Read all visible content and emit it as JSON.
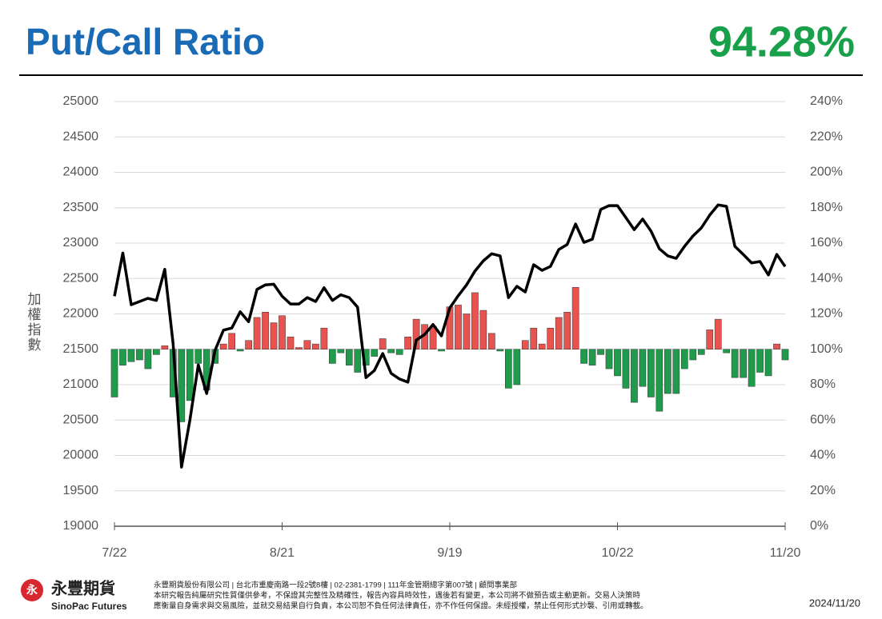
{
  "header": {
    "title": "Put/Call Ratio",
    "value": "94.28%"
  },
  "chart_data": {
    "type": "combo",
    "y_label": "加權指數",
    "categories": [
      "7/22",
      null,
      null,
      null,
      null,
      null,
      null,
      null,
      null,
      null,
      null,
      null,
      null,
      null,
      null,
      null,
      null,
      null,
      null,
      null,
      "8/21",
      null,
      null,
      null,
      null,
      null,
      null,
      null,
      null,
      null,
      null,
      null,
      null,
      null,
      null,
      null,
      null,
      null,
      null,
      null,
      "9/19",
      null,
      null,
      null,
      null,
      null,
      null,
      null,
      null,
      null,
      null,
      null,
      null,
      null,
      null,
      null,
      null,
      null,
      null,
      null,
      "10/22",
      null,
      null,
      null,
      null,
      null,
      null,
      null,
      null,
      null,
      null,
      null,
      null,
      null,
      null,
      null,
      null,
      null,
      null,
      null,
      "11/20"
    ],
    "ylim": [
      19000,
      25000
    ],
    "yticks": [
      19000,
      19500,
      20000,
      20500,
      21000,
      21500,
      22000,
      22500,
      23000,
      23500,
      24000,
      24500,
      25000
    ],
    "y2lim": [
      0,
      240
    ],
    "y2ticks": [
      {
        "value": 0,
        "label": "0%"
      },
      {
        "value": 20,
        "label": "20%"
      },
      {
        "value": 40,
        "label": "40%"
      },
      {
        "value": 60,
        "label": "60%"
      },
      {
        "value": 80,
        "label": "80%"
      },
      {
        "value": 100,
        "label": "100%"
      },
      {
        "value": 120,
        "label": "120%"
      },
      {
        "value": 140,
        "label": "140%"
      },
      {
        "value": 160,
        "label": "160%"
      },
      {
        "value": 180,
        "label": "180%"
      },
      {
        "value": 200,
        "label": "200%"
      },
      {
        "value": 220,
        "label": "220%"
      },
      {
        "value": 240,
        "label": "240%"
      }
    ],
    "grid": true,
    "bar_baseline": 100,
    "series": [
      {
        "type": "bar",
        "axis": "y2",
        "color": "#e8534f",
        "negative_color": "#1f9b4b",
        "values": [
          73,
          91,
          93,
          94,
          89,
          97,
          102,
          73,
          59,
          71,
          92,
          77,
          92,
          103,
          109,
          99,
          105,
          118,
          121,
          115,
          119,
          107,
          101,
          105,
          103,
          112,
          92,
          98,
          91,
          87,
          91,
          96,
          106,
          98,
          97,
          107,
          117,
          114,
          113,
          99,
          124,
          125,
          120,
          132,
          122,
          109,
          99,
          78,
          80,
          105,
          112,
          103,
          112,
          118,
          121,
          135,
          92,
          91,
          97,
          89,
          85,
          78,
          70,
          79,
          73,
          65,
          75,
          75,
          89,
          94,
          97,
          111,
          117,
          98,
          84,
          84,
          79,
          87,
          85,
          103,
          94
        ]
      },
      {
        "type": "line",
        "axis": "y",
        "color": "#000000",
        "values": [
          22250,
          22860,
          22130,
          22175,
          22220,
          22190,
          22630,
          21575,
          19835,
          20500,
          21280,
          20875,
          21485,
          21770,
          21800,
          22030,
          21890,
          22345,
          22410,
          22420,
          22250,
          22140,
          22140,
          22230,
          22175,
          22370,
          22190,
          22270,
          22230,
          22095,
          21100,
          21200,
          21440,
          21160,
          21080,
          21035,
          21630,
          21710,
          21850,
          21690,
          22085,
          22255,
          22410,
          22605,
          22750,
          22850,
          22820,
          22230,
          22390,
          22310,
          22695,
          22615,
          22670,
          22910,
          22980,
          23270,
          23010,
          23055,
          23475,
          23530,
          23530,
          23360,
          23190,
          23340,
          23170,
          22920,
          22820,
          22785,
          22955,
          23100,
          23215,
          23395,
          23540,
          23520,
          22955,
          22840,
          22720,
          22740,
          22550,
          22840,
          22670
        ]
      }
    ]
  },
  "footer": {
    "logo_cn": "永豐期貨",
    "logo_en": "SinoPac Futures",
    "lines": [
      "永豐期貨股份有限公司 | 台北市重慶南路一段2號8樓 | 02-2381-1799 | 111年金管期總字第007號 | 顧問事業部",
      "本研究報告純屬研究性質僅供參考，不保證其完整性及精確性，報告內容具時效性，遇後若有變更，本公司將不做預告或主動更新。交易人決策時",
      "應衡量自身需求與交易風險，並就交易結果自行負責，本公司恕不負任何法律責任，亦不作任何保證。未經授權，禁止任何形式抄襲、引用或轉載。"
    ],
    "date": "2024/11/20"
  }
}
